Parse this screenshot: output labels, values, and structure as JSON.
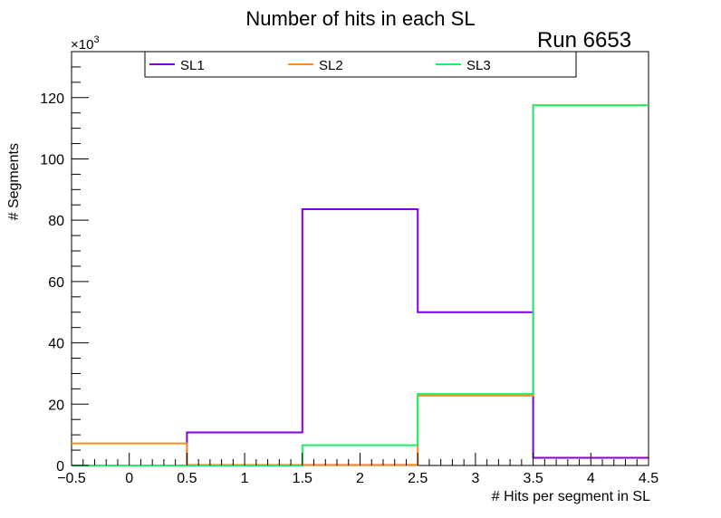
{
  "chart_data": {
    "type": "line",
    "title": "Number of hits in each SL",
    "annotation": "Run 6653",
    "xlabel": "# Hits per segment in SL",
    "ylabel": "# Segments",
    "y_exponent_label": "×10",
    "y_exponent_power": "3",
    "xlim": [
      -0.5,
      4.5
    ],
    "ylim": [
      0,
      135
    ],
    "x_ticks": [
      -0.5,
      0,
      0.5,
      1,
      1.5,
      2,
      2.5,
      3,
      3.5,
      4,
      4.5
    ],
    "x_tick_labels": [
      "−0.5",
      "0",
      "0.5",
      "1",
      "1.5",
      "2",
      "2.5",
      "3",
      "3.5",
      "4",
      "4.5"
    ],
    "y_ticks": [
      0,
      20,
      40,
      60,
      80,
      100,
      120
    ],
    "y_tick_labels": [
      "0",
      "20",
      "40",
      "60",
      "80",
      "100",
      "120"
    ],
    "bin_edges": [
      -0.5,
      0.5,
      1.5,
      2.5,
      3.5,
      4.5
    ],
    "legend_position": "top",
    "series": [
      {
        "name": "SL1",
        "color": "#8000e0",
        "values": [
          0,
          10.8,
          83.6,
          50.0,
          2.5
        ]
      },
      {
        "name": "SL2",
        "color": "#ff8c1a",
        "values": [
          7.2,
          0.2,
          0.2,
          22.8,
          117.5
        ]
      },
      {
        "name": "SL3",
        "color": "#1aef6a",
        "values": [
          0,
          0,
          6.6,
          23.3,
          117.5
        ]
      }
    ]
  }
}
